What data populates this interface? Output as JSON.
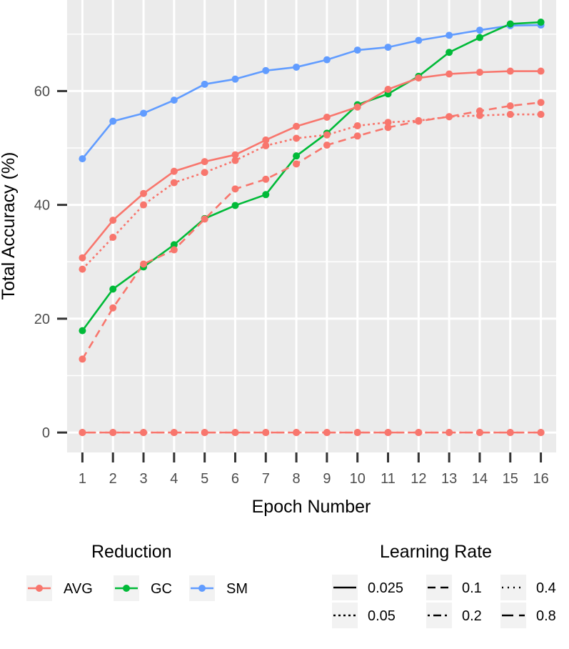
{
  "chart_data": {
    "type": "line",
    "title": "",
    "xlabel": "Epoch Number",
    "ylabel": "Total Accuracy (%)",
    "x": [
      1,
      2,
      3,
      4,
      5,
      6,
      7,
      8,
      9,
      10,
      11,
      12,
      13,
      14,
      15,
      16
    ],
    "x_tick_labels": [
      "1",
      "2",
      "3",
      "4",
      "5",
      "6",
      "7",
      "8",
      "9",
      "10",
      "11",
      "12",
      "13",
      "14",
      "15",
      "16"
    ],
    "y_ticks": [
      0,
      20,
      40,
      60
    ],
    "y_tick_labels": [
      "0",
      "20",
      "40",
      "60"
    ],
    "ylim": [
      -3.5,
      76
    ],
    "xlim": [
      0.5,
      16.5
    ],
    "grid": true,
    "colors": {
      "AVG": "#F8766D",
      "GC": "#00BA38",
      "SM": "#619CFF"
    },
    "panel_background": "#EBEBEB",
    "series": [
      {
        "name": "SM, 0.025",
        "reduction": "SM",
        "learning_rate": "0.025",
        "values": [
          48.1,
          54.7,
          56.1,
          58.4,
          61.2,
          62.1,
          63.6,
          64.2,
          65.5,
          67.2,
          67.7,
          68.9,
          69.8,
          70.7,
          71.5,
          71.6
        ]
      },
      {
        "name": "GC, 0.025",
        "reduction": "GC",
        "learning_rate": "0.025",
        "values": [
          17.9,
          25.2,
          29.1,
          33.0,
          37.6,
          39.9,
          41.8,
          48.6,
          52.6,
          57.6,
          59.5,
          62.6,
          66.8,
          69.4,
          71.8,
          72.1
        ]
      },
      {
        "name": "AVG, 0.025",
        "reduction": "AVG",
        "learning_rate": "0.025",
        "values": [
          30.7,
          37.3,
          42.0,
          45.9,
          47.6,
          48.8,
          51.4,
          53.8,
          55.4,
          57.2,
          60.3,
          62.3,
          63.0,
          63.3,
          63.5,
          63.5
        ]
      },
      {
        "name": "AVG, 0.05",
        "reduction": "AVG",
        "learning_rate": "0.05",
        "values": [
          28.7,
          34.3,
          40.0,
          43.9,
          45.7,
          47.8,
          50.4,
          51.7,
          52.3,
          53.9,
          54.5,
          54.8,
          55.5,
          55.7,
          55.9,
          55.9
        ]
      },
      {
        "name": "AVG, 0.1",
        "reduction": "AVG",
        "learning_rate": "0.1",
        "values": [
          12.9,
          21.9,
          29.6,
          32.1,
          37.5,
          42.8,
          44.5,
          47.2,
          50.5,
          52.1,
          53.6,
          54.7,
          55.5,
          56.5,
          57.4,
          58.0
        ]
      },
      {
        "name": "AVG, 0.2",
        "reduction": "AVG",
        "learning_rate": "0.2",
        "values": [
          0,
          0,
          0,
          0,
          0,
          0,
          0,
          0,
          0,
          0,
          0,
          0,
          0,
          0,
          0,
          0
        ]
      },
      {
        "name": "AVG, 0.4",
        "reduction": "AVG",
        "learning_rate": "0.4",
        "values": [
          0,
          0,
          0,
          0,
          0,
          0,
          0,
          0,
          0,
          0,
          0,
          0,
          0,
          0,
          0,
          0
        ]
      },
      {
        "name": "AVG, 0.8",
        "reduction": "AVG",
        "learning_rate": "0.8",
        "values": [
          0,
          0,
          0,
          0,
          0,
          0,
          0,
          0,
          0,
          0,
          0,
          0,
          0,
          0,
          0,
          0
        ]
      }
    ],
    "legend": {
      "position": "bottom",
      "reduction": {
        "title": "Reduction",
        "items": [
          {
            "label": "AVG",
            "color": "#F8766D"
          },
          {
            "label": "GC",
            "color": "#00BA38"
          },
          {
            "label": "SM",
            "color": "#619CFF"
          }
        ]
      },
      "learning_rate": {
        "title": "Learning Rate",
        "items": [
          {
            "label": "0.025",
            "dash": "solid"
          },
          {
            "label": "0.1",
            "dash": "dashed"
          },
          {
            "label": "0.4",
            "dash": "dotted"
          },
          {
            "label": "0.05",
            "dash": "short-dashed"
          },
          {
            "label": "0.2",
            "dash": "dot-dash"
          },
          {
            "label": "0.8",
            "dash": "long-dash"
          }
        ]
      }
    }
  }
}
